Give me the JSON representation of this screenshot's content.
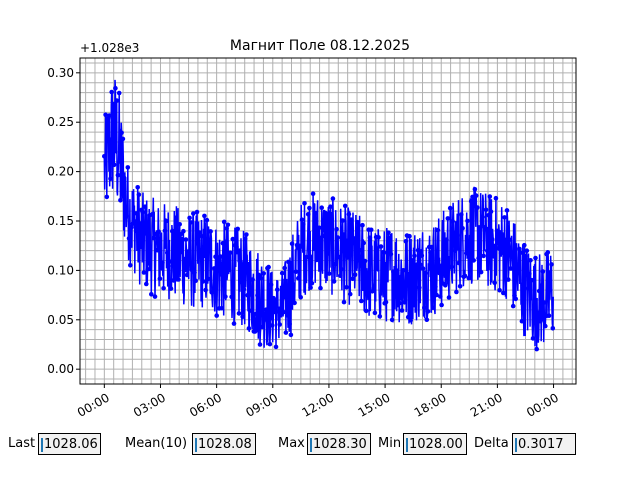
{
  "chart_data": {
    "type": "line",
    "title": "Магнит Поле 08.12.2025",
    "offset_label": "+1.028e3",
    "xlabel": "",
    "ylabel": "",
    "x_tick_labels": [
      "00:00",
      "03:00",
      "06:00",
      "09:00",
      "12:00",
      "15:00",
      "18:00",
      "21:00",
      "00:00"
    ],
    "x_tick_hours": [
      0,
      3,
      6,
      9,
      12,
      15,
      18,
      21,
      24
    ],
    "xlim_hours": [
      -1.3,
      25.2
    ],
    "y_tick_labels": [
      "0.00",
      "0.05",
      "0.10",
      "0.15",
      "0.20",
      "0.25",
      "0.30"
    ],
    "y_ticks": [
      0.0,
      0.05,
      0.1,
      0.15,
      0.2,
      0.25,
      0.3
    ],
    "ylim": [
      -0.015,
      0.315
    ],
    "grid": true,
    "series_color": "#0000ff",
    "series": [
      {
        "x_hours": [
          0.0,
          0.25,
          0.5,
          0.75,
          1.0,
          1.25,
          1.5,
          2.0,
          2.5,
          3.0,
          3.5,
          4.0,
          4.5,
          5.0,
          5.5,
          6.0,
          6.5,
          7.0,
          7.5,
          8.0,
          8.5,
          9.0,
          9.5,
          10.0,
          10.5,
          11.0,
          11.5,
          12.0,
          12.5,
          13.0,
          13.5,
          14.0,
          14.5,
          15.0,
          15.5,
          16.0,
          16.5,
          17.0,
          17.5,
          18.0,
          18.5,
          19.0,
          19.5,
          20.0,
          20.5,
          21.0,
          21.5,
          22.0,
          22.5,
          23.0,
          23.5,
          24.0
        ],
        "center": [
          0.2,
          0.22,
          0.24,
          0.22,
          0.19,
          0.16,
          0.15,
          0.13,
          0.125,
          0.12,
          0.12,
          0.115,
          0.11,
          0.11,
          0.11,
          0.1,
          0.1,
          0.095,
          0.09,
          0.08,
          0.07,
          0.06,
          0.06,
          0.085,
          0.12,
          0.13,
          0.13,
          0.125,
          0.12,
          0.115,
          0.11,
          0.1,
          0.095,
          0.095,
          0.1,
          0.09,
          0.095,
          0.1,
          0.1,
          0.11,
          0.12,
          0.13,
          0.135,
          0.135,
          0.13,
          0.125,
          0.12,
          0.1,
          0.08,
          0.07,
          0.07,
          0.08
        ],
        "spread": [
          0.05,
          0.06,
          0.07,
          0.07,
          0.06,
          0.05,
          0.05,
          0.05,
          0.05,
          0.05,
          0.05,
          0.05,
          0.05,
          0.05,
          0.05,
          0.05,
          0.05,
          0.05,
          0.05,
          0.05,
          0.05,
          0.04,
          0.04,
          0.05,
          0.05,
          0.05,
          0.05,
          0.05,
          0.05,
          0.05,
          0.05,
          0.05,
          0.05,
          0.05,
          0.05,
          0.05,
          0.05,
          0.05,
          0.05,
          0.05,
          0.05,
          0.05,
          0.05,
          0.05,
          0.05,
          0.05,
          0.05,
          0.05,
          0.05,
          0.05,
          0.05,
          0.05
        ]
      }
    ]
  },
  "stats": [
    {
      "label": "Last",
      "value": "1028.06"
    },
    {
      "label": "Mean(10)",
      "value": "1028.08"
    },
    {
      "label": "Max",
      "value": "1028.30"
    },
    {
      "label": "Min",
      "value": "1028.00"
    },
    {
      "label": "Delta",
      "value": "0.3017"
    }
  ]
}
